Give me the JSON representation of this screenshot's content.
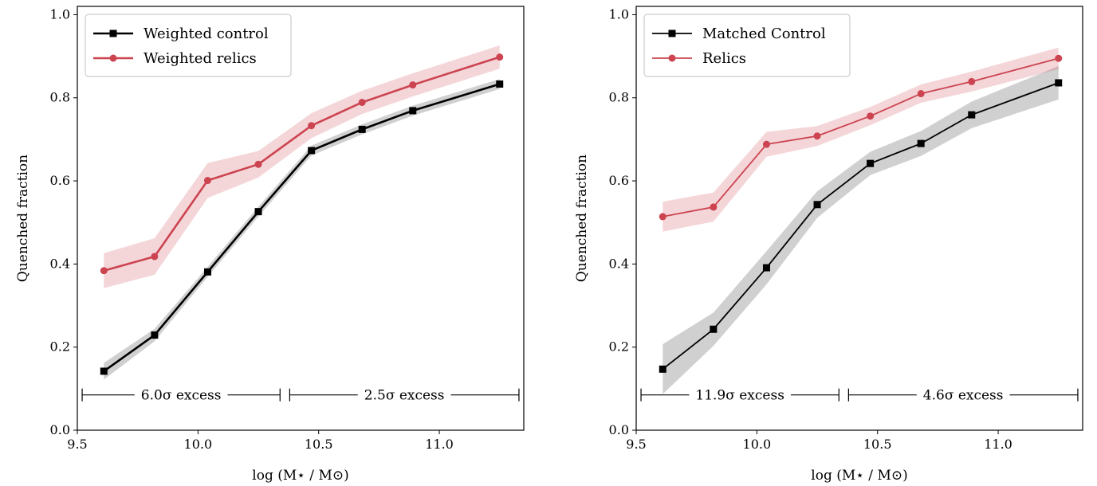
{
  "chart_data": [
    {
      "type": "line",
      "xlabel": "log (M⋆ / M⊙)",
      "ylabel": "Quenched fraction",
      "xlim": [
        9.5,
        11.35
      ],
      "ylim": [
        0.0,
        1.02
      ],
      "xticks": [
        "9.5",
        "10.0",
        "10.5",
        "11.0"
      ],
      "yticks": [
        "0.0",
        "0.2",
        "0.4",
        "0.6",
        "0.8",
        "1.0"
      ],
      "legend_placement": "top-left",
      "x": [
        9.61,
        9.82,
        10.04,
        10.25,
        10.47,
        10.68,
        10.89,
        11.25
      ],
      "series": [
        {
          "name": "Weighted control",
          "color": "#000000",
          "marker": "square",
          "values": [
            0.142,
            0.229,
            0.381,
            0.526,
            0.673,
            0.724,
            0.769,
            0.833
          ],
          "band": [
            0.02,
            0.015,
            0.012,
            0.012,
            0.012,
            0.012,
            0.012,
            0.012
          ]
        },
        {
          "name": "Weighted relics",
          "color": "#cc4450",
          "marker": "circle",
          "values": [
            0.384,
            0.418,
            0.601,
            0.64,
            0.733,
            0.789,
            0.831,
            0.898
          ],
          "band": [
            0.042,
            0.044,
            0.042,
            0.032,
            0.03,
            0.028,
            0.028,
            0.028
          ]
        }
      ],
      "annotations": [
        {
          "text": "6.0σ excess",
          "x_from": 9.52,
          "x_to": 10.34,
          "y": 0.085
        },
        {
          "text": "2.5σ excess",
          "x_from": 10.38,
          "x_to": 11.33,
          "y": 0.085
        }
      ]
    },
    {
      "type": "line",
      "xlabel": "log (M⋆ / M⊙)",
      "ylabel": "Quenched fraction",
      "xlim": [
        9.5,
        11.35
      ],
      "ylim": [
        0.0,
        1.02
      ],
      "xticks": [
        "9.5",
        "10.0",
        "10.5",
        "11.0"
      ],
      "yticks": [
        "0.0",
        "0.2",
        "0.4",
        "0.6",
        "0.8",
        "1.0"
      ],
      "legend_placement": "top-left",
      "x": [
        9.61,
        9.82,
        10.04,
        10.25,
        10.47,
        10.68,
        10.89,
        11.25
      ],
      "series": [
        {
          "name": "Matched Control",
          "color": "#000000",
          "marker": "square",
          "values": [
            0.147,
            0.243,
            0.391,
            0.543,
            0.642,
            0.69,
            0.759,
            0.836
          ],
          "band": [
            0.06,
            0.04,
            0.04,
            0.032,
            0.028,
            0.03,
            0.032,
            0.04
          ]
        },
        {
          "name": "Relics",
          "color": "#cc4450",
          "marker": "circle",
          "values": [
            0.514,
            0.537,
            0.688,
            0.708,
            0.756,
            0.81,
            0.839,
            0.895
          ],
          "band": [
            0.036,
            0.035,
            0.03,
            0.024,
            0.022,
            0.022,
            0.024,
            0.026
          ]
        }
      ],
      "annotations": [
        {
          "text": "11.9σ excess",
          "x_from": 9.52,
          "x_to": 10.34,
          "y": 0.085
        },
        {
          "text": "4.6σ excess",
          "x_from": 10.38,
          "x_to": 11.33,
          "y": 0.085
        }
      ]
    }
  ]
}
